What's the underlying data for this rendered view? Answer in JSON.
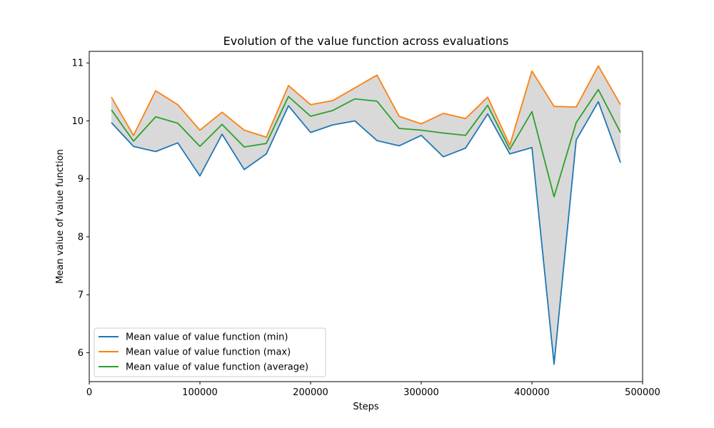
{
  "chart_data": {
    "type": "line",
    "title": "Evolution of the value function across evaluations",
    "xlabel": "Steps",
    "ylabel": "Mean value of value function",
    "xlim": [
      0,
      500000
    ],
    "ylim": [
      5.5,
      11.2
    ],
    "xticks": [
      0,
      100000,
      200000,
      300000,
      400000,
      500000
    ],
    "xtick_labels": [
      "0",
      "100000",
      "200000",
      "300000",
      "400000",
      "500000"
    ],
    "yticks": [
      6,
      7,
      8,
      9,
      10,
      11
    ],
    "ytick_labels": [
      "6",
      "7",
      "8",
      "9",
      "10",
      "11"
    ],
    "grid": false,
    "legend_position": "lower-left",
    "fill_between": {
      "lower": "min",
      "upper": "max",
      "color": "#d9d9d9"
    },
    "x": [
      20000,
      40000,
      60000,
      80000,
      100000,
      120000,
      140000,
      160000,
      180000,
      200000,
      220000,
      240000,
      260000,
      280000,
      300000,
      320000,
      340000,
      360000,
      380000,
      400000,
      420000,
      440000,
      460000,
      480000
    ],
    "series": [
      {
        "key": "min",
        "name": "Mean value of value function (min)",
        "color": "#1f77b4",
        "values": [
          9.97,
          9.56,
          9.47,
          9.62,
          9.05,
          9.77,
          9.16,
          9.43,
          10.26,
          9.8,
          9.93,
          10.0,
          9.66,
          9.57,
          9.75,
          9.38,
          9.53,
          10.12,
          9.43,
          9.54,
          5.8,
          9.67,
          10.33,
          9.28
        ]
      },
      {
        "key": "max",
        "name": "Mean value of value function (max)",
        "color": "#ff7f0e",
        "values": [
          10.41,
          9.75,
          10.52,
          10.28,
          9.84,
          10.15,
          9.84,
          9.72,
          10.61,
          10.28,
          10.35,
          10.57,
          10.79,
          10.08,
          9.95,
          10.13,
          10.04,
          10.41,
          9.58,
          10.86,
          10.25,
          10.24,
          10.95,
          10.28
        ]
      },
      {
        "key": "average",
        "name": "Mean value of value function (average)",
        "color": "#2ca02c",
        "values": [
          10.19,
          9.65,
          10.07,
          9.96,
          9.56,
          9.94,
          9.55,
          9.61,
          10.42,
          10.08,
          10.18,
          10.38,
          10.34,
          9.87,
          9.84,
          9.79,
          9.75,
          10.27,
          9.51,
          10.16,
          8.69,
          9.97,
          10.54,
          9.8
        ]
      }
    ]
  }
}
